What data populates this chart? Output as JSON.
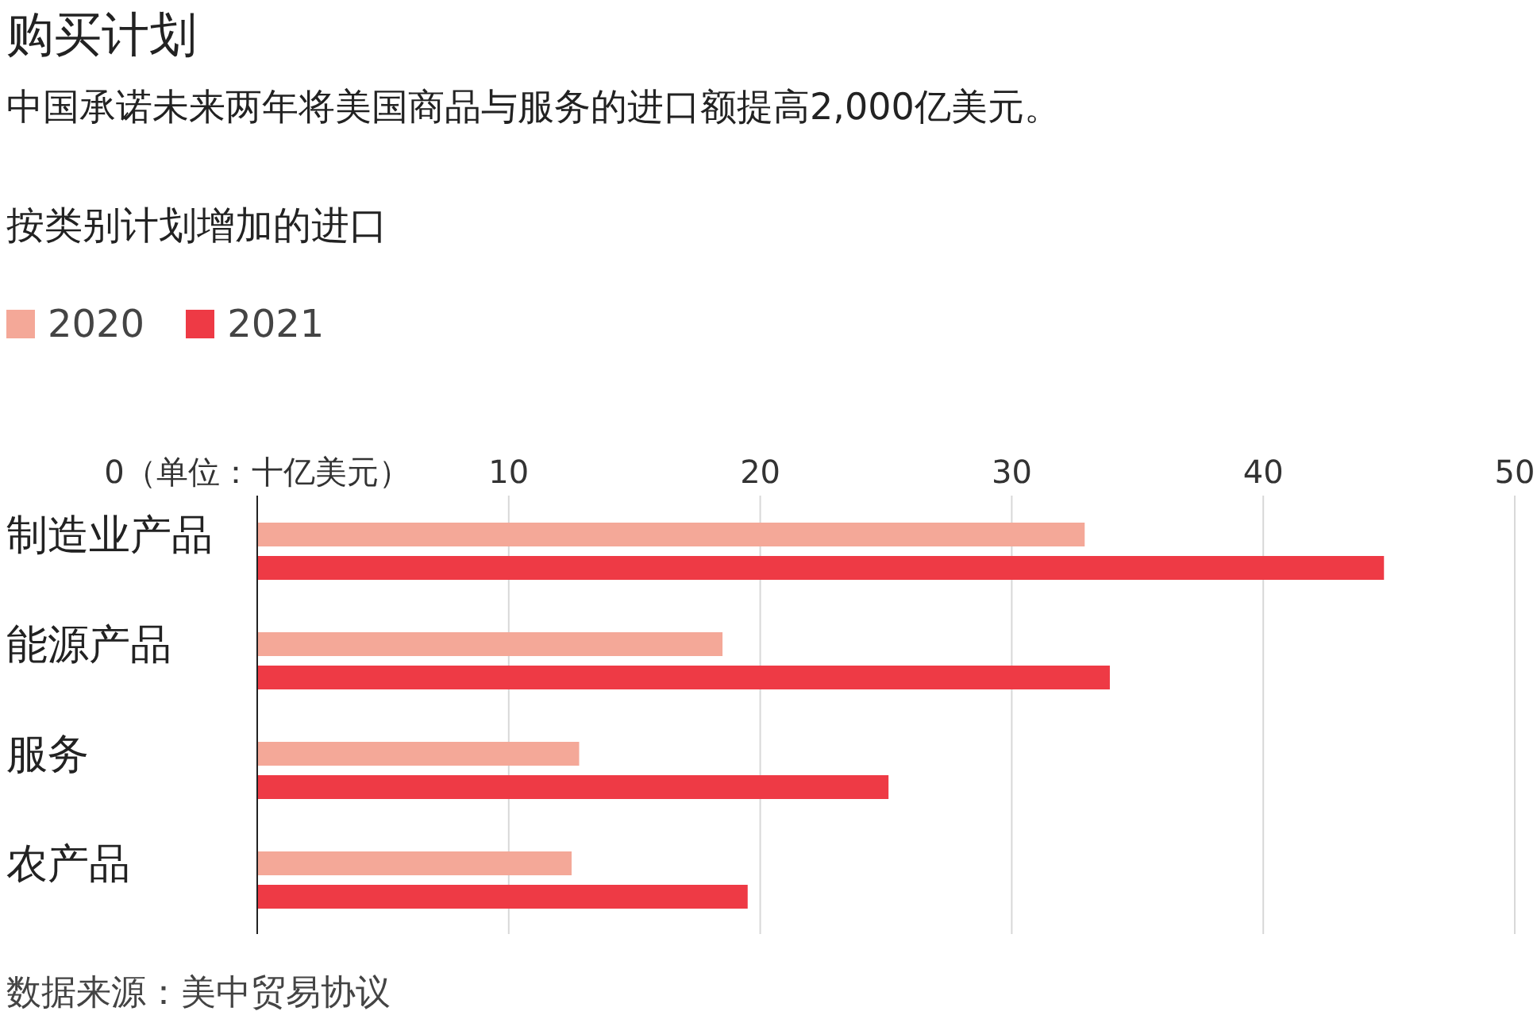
{
  "chart_data": {
    "type": "bar",
    "orientation": "horizontal",
    "title": "购买计划",
    "subtitle": "中国承诺未来两年将美国商品与服务的进口额提高2,000亿美元。",
    "annotations": [
      "按类别计划增加的进口",
      "数据来源：美中贸易协议"
    ],
    "categories": [
      "制造业产品",
      "能源产品",
      "服务",
      "农产品"
    ],
    "series": [
      {
        "name": "2020",
        "color": "#f4a898",
        "values": [
          32.9,
          18.5,
          12.8,
          12.5
        ]
      },
      {
        "name": "2021",
        "color": "#ee3a45",
        "values": [
          44.8,
          33.9,
          25.1,
          19.5
        ]
      }
    ],
    "xlim": [
      0,
      50
    ],
    "xticks": [
      {
        "value": 0,
        "label": "0（单位：十亿美元）"
      },
      10,
      20,
      30,
      40,
      50
    ],
    "grid": "x",
    "legend": "top left"
  }
}
